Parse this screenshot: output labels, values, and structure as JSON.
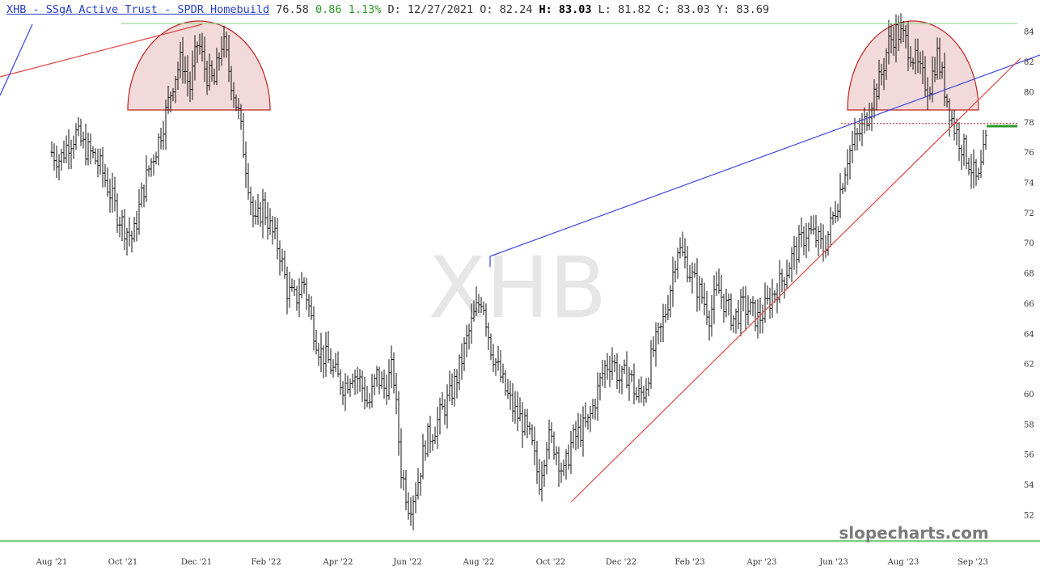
{
  "header": {
    "title": "XHB - SSgA Active Trust - SPDR Homebuild",
    "last": "76.58",
    "change": "0.86",
    "change_pct": "1.13%",
    "date_label": "D:",
    "date": "12/27/2021",
    "open_label": "O:",
    "open": "82.24",
    "high_label": "H:",
    "high": "83.03",
    "low_label": "L:",
    "low": "81.82",
    "close_label": "C:",
    "close": "83.03",
    "y_label": "Y:",
    "y_value": "83.69"
  },
  "watermark": "XHB",
  "brand": "slopecharts.com",
  "colors": {
    "bar": "#111111",
    "trend_red": "#e04545",
    "trend_blue": "#3a44e0",
    "dome_fill": "#f2d6d6",
    "dome_stroke": "#c02020",
    "green": "#2a9a2a",
    "grid_line": "#7ccf7c"
  },
  "chart_data": {
    "type": "ohlc",
    "ylim": [
      50,
      85
    ],
    "yticks": [
      52,
      54,
      56,
      58,
      60,
      62,
      64,
      66,
      68,
      70,
      72,
      74,
      76,
      78,
      80,
      82,
      84
    ],
    "xticks": [
      "Aug '21",
      "Oct '21",
      "Dec '21",
      "Feb '22",
      "Apr '22",
      "Jun '22",
      "Aug '22",
      "Oct '22",
      "Dec '22",
      "Feb '23",
      "Apr '23",
      "Jun '23",
      "Aug '23",
      "Sep '23"
    ],
    "weekly_close": [
      76.0,
      75.5,
      76.6,
      77.2,
      76.3,
      75.8,
      75.0,
      73.6,
      72.0,
      71.0,
      70.2,
      73.0,
      75.0,
      76.5,
      78.5,
      80.8,
      82.2,
      80.2,
      83.4,
      81.2,
      80.6,
      83.5,
      81.0,
      78.5,
      74.8,
      71.0,
      72.5,
      70.8,
      69.6,
      66.8,
      66.2,
      67.5,
      64.8,
      62.8,
      62.2,
      61.2,
      60.5,
      61.5,
      60.8,
      59.2,
      61.2,
      60.3,
      61.8,
      55.0,
      52.5,
      54.0,
      56.8,
      57.6,
      58.8,
      59.8,
      61.3,
      63.4,
      65.2,
      66.5,
      63.2,
      61.5,
      60.0,
      58.8,
      58.1,
      56.8,
      54.2,
      57.1,
      56.5,
      54.6,
      56.8,
      57.5,
      58.0,
      59.8,
      61.7,
      62.3,
      60.8,
      61.5,
      59.8,
      60.2,
      62.8,
      64.2,
      66.5,
      69.8,
      68.8,
      67.5,
      66.5,
      65.2,
      67.0,
      65.8,
      64.9,
      65.8,
      65.5,
      64.9,
      65.8,
      66.8,
      67.6,
      68.9,
      69.8,
      70.8,
      70.4,
      69.6,
      71.3,
      73.3,
      75.8,
      76.8,
      77.8,
      79.6,
      80.8,
      83.2,
      84.0,
      83.5,
      82.4,
      81.1,
      80.2,
      82.5,
      80.0,
      77.8,
      76.5,
      75.3,
      73.8,
      76.58
    ],
    "annotations": {
      "resistance_level": 78.0,
      "last_price_marker": 76.58
    }
  }
}
